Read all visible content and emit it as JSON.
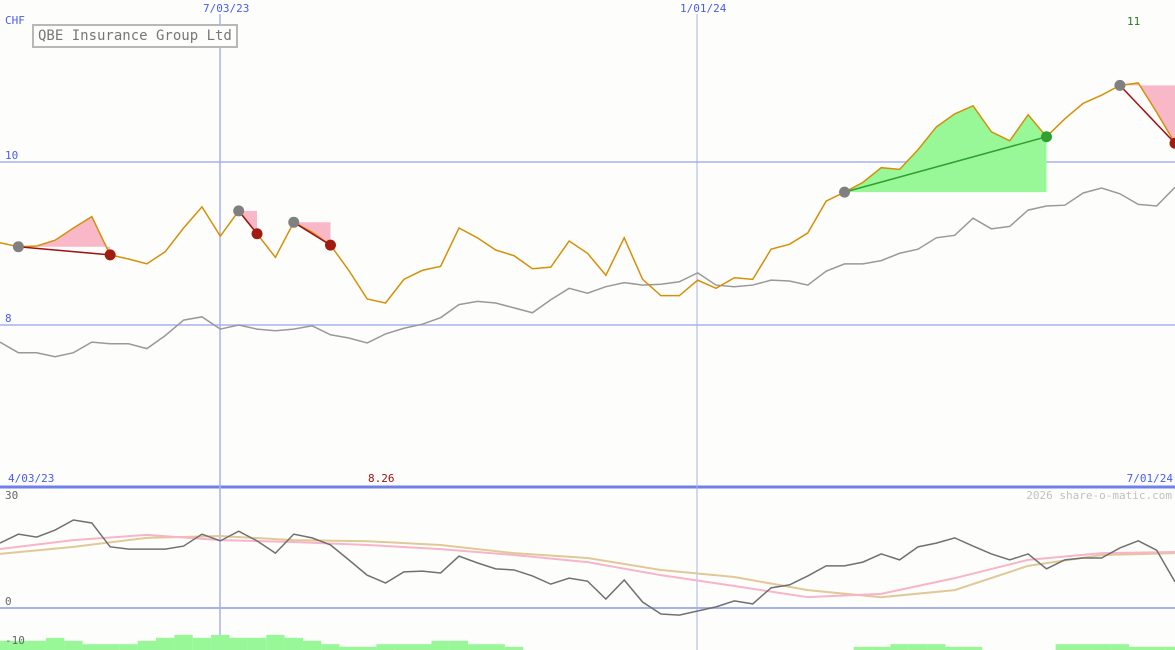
{
  "title": "QBE Insurance Group Ltd",
  "currency": "CHF",
  "last_price_label": "11",
  "low_label": "8.26",
  "watermark": "2026 share-o-matic.com",
  "date_labels": {
    "top_1": "7/03/23",
    "top_2": "1/01/24",
    "bottom_start": "4/03/23",
    "bottom_end": "7/01/24"
  },
  "colors": {
    "price": "#d4900a",
    "compare": "#999999",
    "indicator": "#707070",
    "ma_fast": "#f8b4c8",
    "ma_slow": "#e0c898",
    "histogram": "#98f898",
    "gain_fill": "#98f898",
    "loss_fill": "#f8b8c8",
    "grid": "#a8b0f0",
    "loss_line": "#a01010",
    "gain_line": "#30a030",
    "low_label": "#a01010",
    "last_label": "#208020"
  },
  "chart_data": [
    {
      "type": "line",
      "title": "QBE Insurance Group Ltd",
      "ylabel": "CHF",
      "x_range": [
        "4/03/23",
        "7/01/24"
      ],
      "x_ticks": [
        "7/03/23",
        "1/01/24"
      ],
      "y_ticks": [
        {
          "value": 8,
          "label": "8"
        },
        {
          "value": 10,
          "label": "10"
        }
      ],
      "ylim": [
        6.1,
        11.7
      ],
      "grid": true,
      "series": [
        {
          "key": "price",
          "values": [
            9.01,
            8.96,
            8.97,
            9.04,
            9.19,
            9.33,
            8.86,
            8.81,
            8.75,
            8.9,
            9.19,
            9.45,
            9.09,
            9.4,
            9.12,
            8.83,
            9.26,
            9.14,
            8.98,
            8.67,
            8.32,
            8.27,
            8.56,
            8.67,
            8.72,
            9.19,
            9.07,
            8.92,
            8.85,
            8.69,
            8.71,
            9.03,
            8.88,
            8.61,
            9.07,
            8.56,
            8.36,
            8.36,
            8.55,
            8.45,
            8.58,
            8.56,
            8.93,
            8.99,
            9.13,
            9.52,
            9.63,
            9.75,
            9.93,
            9.91,
            10.15,
            10.43,
            10.59,
            10.69,
            10.37,
            10.26,
            10.58,
            10.31,
            10.53,
            10.72,
            10.82,
            10.94,
            10.97,
            10.61,
            10.23
          ]
        },
        {
          "key": "compare",
          "values": [
            7.79,
            7.66,
            7.66,
            7.61,
            7.66,
            7.79,
            7.77,
            7.77,
            7.71,
            7.87,
            8.06,
            8.1,
            7.95,
            8.0,
            7.95,
            7.93,
            7.95,
            7.99,
            7.88,
            7.84,
            7.78,
            7.89,
            7.96,
            8.01,
            8.09,
            8.25,
            8.29,
            8.27,
            8.21,
            8.15,
            8.31,
            8.45,
            8.39,
            8.47,
            8.52,
            8.49,
            8.5,
            8.53,
            8.64,
            8.49,
            8.47,
            8.49,
            8.55,
            8.54,
            8.49,
            8.66,
            8.75,
            8.75,
            8.79,
            8.88,
            8.93,
            9.07,
            9.1,
            9.31,
            9.18,
            9.21,
            9.41,
            9.46,
            9.47,
            9.62,
            9.68,
            9.61,
            9.48,
            9.46,
            9.69
          ]
        }
      ],
      "signals": [
        {
          "start": 1,
          "end": 6,
          "result": "loss"
        },
        {
          "start": 13,
          "end": 14,
          "result": "loss"
        },
        {
          "start": 16,
          "end": 18,
          "result": "loss"
        },
        {
          "start": 46,
          "end": 57,
          "result": "gain"
        },
        {
          "start": 61,
          "end": 64,
          "result": "loss"
        }
      ]
    },
    {
      "type": "line",
      "y_ticks": [
        {
          "value": 30,
          "label": "30"
        },
        {
          "value": 0,
          "label": "0"
        },
        {
          "value": -10,
          "label": "-10"
        }
      ],
      "ylim": [
        -11.3,
        32
      ],
      "series": [
        {
          "key": "indicator",
          "values": [
            17.4,
            19.8,
            19.0,
            20.9,
            23.6,
            22.8,
            16.4,
            15.8,
            15.8,
            15.8,
            16.6,
            19.8,
            18.0,
            20.6,
            18.0,
            14.7,
            19.8,
            18.8,
            16.9,
            12.9,
            8.8,
            6.7,
            9.7,
            9.9,
            9.4,
            13.9,
            12.1,
            10.5,
            10.2,
            8.6,
            6.4,
            8.0,
            7.2,
            2.4,
            7.5,
            1.6,
            -1.6,
            -1.9,
            -0.8,
            0.3,
            1.9,
            1.1,
            5.4,
            6.2,
            8.6,
            11.3,
            11.3,
            12.3,
            14.5,
            12.9,
            16.4,
            17.4,
            18.8,
            16.6,
            14.5,
            12.9,
            14.5,
            10.5,
            12.9,
            13.4,
            13.4,
            16.1,
            18.0,
            15.5,
            7.0
          ]
        },
        {
          "key": "ma_fast",
          "values": [
            15.8,
            18.2,
            19.6,
            18.2,
            17.7,
            16.9,
            15.8,
            14.2,
            12.3,
            8.8,
            5.9,
            2.9,
            3.8,
            8.0,
            12.9,
            14.7,
            15.0
          ]
        },
        {
          "key": "ma_slow",
          "values": [
            14.5,
            16.4,
            18.8,
            19.3,
            18.2,
            17.9,
            16.9,
            14.7,
            13.4,
            10.2,
            8.3,
            4.8,
            2.9,
            4.8,
            11.3,
            14.2,
            14.7
          ]
        }
      ],
      "histogram": [
        -8.8,
        -8.8,
        -8.8,
        -8.0,
        -8.8,
        -9.7,
        -9.7,
        -9.7,
        -8.8,
        -8.0,
        -7.2,
        -8.0,
        -7.2,
        -8.0,
        -8.0,
        -7.2,
        -8.0,
        -8.8,
        -9.7,
        -10.4,
        -10.4,
        -9.7,
        -9.7,
        -9.7,
        -8.8,
        -8.8,
        -9.7,
        -9.7,
        -10.4,
        null,
        null,
        null,
        null,
        null,
        null,
        null,
        null,
        null,
        null,
        null,
        null,
        null,
        null,
        null,
        null,
        null,
        null,
        -10.4,
        -10.4,
        -9.7,
        -9.7,
        -9.7,
        -10.4,
        -10.4,
        null,
        null,
        null,
        null,
        -9.7,
        -9.7,
        -9.7,
        -9.7,
        -10.4,
        -10.4,
        -10.4
      ]
    }
  ]
}
